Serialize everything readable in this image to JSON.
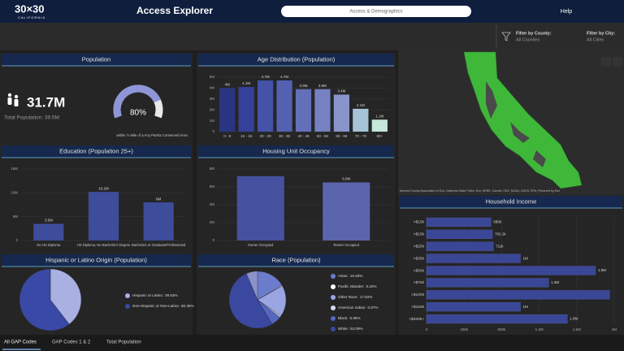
{
  "header": {
    "logo": "30×30",
    "logo_sub": "CALIFORNIA",
    "title": "Access Explorer",
    "search": "Access & Demographics",
    "help": "Help"
  },
  "filters": [
    {
      "label": "Filter by County:",
      "value": "All Counties"
    },
    {
      "label": "Filter by City:",
      "value": "All Cities"
    }
  ],
  "map": {
    "attribution": "Merced County Association of Gov, California State Parks, Esri, HERE, Garmin, FAO, NOAA, USGS, EPA | Powered by Esri"
  },
  "tabs": [
    "All GAP Codes",
    "GAP Codes 1 & 2",
    "Total Population"
  ],
  "chart_data": [
    {
      "type": "gauge",
      "title": "Population",
      "headline": "31.7M",
      "subtitle": "Total Population: 39.5M",
      "caption": "within ½ Mile of a Any Park/a Conserved Area",
      "values": [
        80
      ],
      "value_labels": [
        "80%"
      ],
      "ylim": [
        0,
        100
      ],
      "color": "#8e96d8"
    },
    {
      "type": "bar",
      "title": "Age Distribution (Population)",
      "categories": [
        "0 - 9",
        "10 - 19",
        "20 - 29",
        "30 - 39",
        "40 - 49",
        "50 - 59",
        "60 - 69",
        "70 - 79",
        "80+"
      ],
      "values": [
        4000000,
        4100000,
        4700000,
        4700000,
        3900000,
        3900000,
        3400000,
        2100000,
        1100000
      ],
      "value_labels": [
        "4M",
        "4.1M",
        "4.7M",
        "4.7M",
        "3.9M",
        "3.9M",
        "3.4M",
        "2.1M",
        "1.1M"
      ],
      "colors": [
        "#2a3582",
        "#34409a",
        "#4452a8",
        "#5461b2",
        "#6370b9",
        "#7581c2",
        "#8894cc",
        "#a6c4d8",
        "#c5e8d8"
      ],
      "ylim": [
        0,
        5000000
      ],
      "yticks": [
        0,
        {
          "value": 1000000,
          "label": "1M"
        },
        {
          "value": 2000000,
          "label": "2M"
        },
        {
          "value": 3000000,
          "label": "3M"
        },
        {
          "value": 4000000,
          "label": "4M"
        },
        {
          "value": 5000000,
          "label": "5M"
        }
      ]
    },
    {
      "type": "bar",
      "title": "Education (Population 25+)",
      "categories": [
        "No HS Diploma",
        "HS Diploma, No Bachelor's Degree",
        "Bachelors or Graduate/Professional"
      ],
      "values": [
        3500000,
        10200000,
        8000000
      ],
      "value_labels": [
        "3.5M",
        "10.2M",
        "8M"
      ],
      "color": "#3e4c9c",
      "ylim": [
        0,
        15000000
      ],
      "yticks": [
        0,
        {
          "value": 5000000,
          "label": "5M"
        },
        {
          "value": 10000000,
          "label": "10M"
        },
        {
          "value": 15000000,
          "label": "15M"
        }
      ]
    },
    {
      "type": "bar",
      "title": "Housing Unit Occupancy",
      "categories": [
        "Owner Occupied",
        "Renter Occupied"
      ],
      "values": [
        7200000,
        6500000
      ],
      "value_labels": [
        null,
        "6.5M"
      ],
      "colors": [
        "#46529f",
        "#5b65ad"
      ],
      "ylim": [
        0,
        8000000
      ],
      "yticks": [
        0,
        {
          "value": 2000000,
          "label": "2M"
        },
        {
          "value": 4000000,
          "label": "4M"
        },
        {
          "value": 6000000,
          "label": "6M"
        },
        {
          "value": 8000000,
          "label": "8M"
        }
      ]
    },
    {
      "type": "pie",
      "title": "Hispanic or Latino Origin (Population)",
      "categories": [
        "Hispanic or Latino:",
        "Non-Hispanic or Non-Latino:"
      ],
      "values": [
        39.53,
        60.45
      ],
      "value_labels": [
        "39.53%",
        "60.45%"
      ],
      "colors": [
        "#a9b0e2",
        "#3a48a6"
      ]
    },
    {
      "type": "pie",
      "title": "Race (Population)",
      "categories": [
        "Asian:",
        "Pacific Islander:",
        "Other Race:",
        "American Indian:",
        "Black:",
        "White:"
      ],
      "values": [
        16.45,
        0.42,
        17.82,
        0.87,
        5.95,
        52.09
      ],
      "value_labels": [
        "16.45%",
        "0.42%",
        "17.82%",
        "0.87%",
        "5.95%",
        "52.09%"
      ],
      "colors": [
        "#6b7ccd",
        "#ffffff",
        "#9aa5e4",
        "#d6dbf5",
        "#5566c0",
        "#3a48a0"
      ]
    },
    {
      "type": "hbar",
      "title": "Household Income",
      "categories": [
        "<$15k",
        ">$15k",
        ">$25k",
        ">$35k",
        ">$50k",
        ">$75k",
        ">$100k",
        ">$150k",
        ">$200k+"
      ],
      "values": [
        686000,
        702100,
        711000,
        1000000,
        1800000,
        1300000,
        1950000,
        1000000,
        1500000
      ],
      "value_labels": [
        "686k",
        "702.1k",
        "711k",
        "1M",
        "1.8M",
        "1.3M",
        null,
        "1M",
        "1.5M"
      ],
      "color": "#3a4696",
      "xlim": [
        0,
        2000000
      ],
      "xticks": [
        0,
        {
          "value": 400000,
          "label": "400k"
        },
        {
          "value": 800000,
          "label": "800k"
        },
        {
          "value": 1200000,
          "label": "1.2M"
        },
        {
          "value": 1600000,
          "label": "1.6M"
        },
        {
          "value": 2000000,
          "label": "2M"
        }
      ]
    }
  ]
}
